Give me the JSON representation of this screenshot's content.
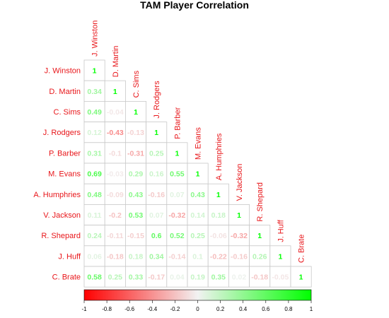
{
  "chart_data": {
    "type": "heatmap",
    "title": "TAM Player Correlation",
    "players": [
      "J. Winston",
      "D. Martin",
      "C. Sims",
      "J. Rodgers",
      "P. Barber",
      "M. Evans",
      "A. Humphries",
      "V. Jackson",
      "R. Shepard",
      "J. Huff",
      "C. Brate"
    ],
    "matrix": [
      [
        1
      ],
      [
        0.34,
        1
      ],
      [
        0.49,
        -0.04,
        1
      ],
      [
        0.12,
        -0.43,
        -0.13,
        1
      ],
      [
        0.31,
        -0.1,
        -0.31,
        0.25,
        1
      ],
      [
        0.69,
        -0.03,
        0.29,
        0.16,
        0.55,
        1
      ],
      [
        0.48,
        -0.09,
        0.43,
        -0.16,
        0.07,
        0.43,
        1
      ],
      [
        0.11,
        -0.2,
        0.53,
        0.07,
        -0.32,
        0.14,
        0.18,
        1
      ],
      [
        0.24,
        -0.11,
        -0.15,
        0.6,
        0.52,
        0.25,
        -0.06,
        -0.32,
        1
      ],
      [
        0.06,
        -0.18,
        0.18,
        0.34,
        -0.14,
        0.1,
        -0.22,
        -0.16,
        0.26,
        1
      ],
      [
        0.58,
        0.25,
        0.33,
        -0.17,
        0.04,
        0.19,
        0.35,
        0.02,
        -0.18,
        -0.05,
        1
      ]
    ],
    "color_scale": {
      "low": "#ff0000",
      "mid": "#f2f2f2",
      "high": "#00ff00",
      "range": [
        -1,
        1
      ]
    },
    "colorbar_ticks": [
      "-1",
      "-0.8",
      "-0.6",
      "-0.4",
      "-0.2",
      "0",
      "0.2",
      "0.4",
      "0.6",
      "0.8",
      "1"
    ],
    "label_color": "#e8161a"
  }
}
